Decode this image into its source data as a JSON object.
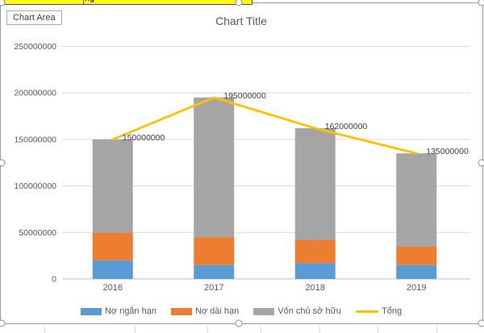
{
  "chart_area_tooltip": {
    "label": "Chart Area"
  },
  "sheet": {
    "top_row_text_fragment": "ng",
    "highlight_color": "#FFFF00",
    "highlight_border_color": "#7030A0"
  },
  "chart_data": {
    "type": "bar",
    "subtype": "stacked-column-with-line-overlay",
    "title": "Chart Title",
    "categories": [
      "2016",
      "2017",
      "2018",
      "2019"
    ],
    "series": [
      {
        "name": "Nợ ngắn hạn",
        "type": "bar",
        "color": "#5B9BD5",
        "values": [
          20000000,
          15000000,
          17000000,
          15000000
        ]
      },
      {
        "name": "Nợ dài hạn",
        "type": "bar",
        "color": "#ED7D31",
        "values": [
          30000000,
          30000000,
          25000000,
          20000000
        ]
      },
      {
        "name": "Vốn chủ sở hữu",
        "type": "bar",
        "color": "#A5A5A5",
        "values": [
          100000000,
          150000000,
          120000000,
          100000000
        ]
      },
      {
        "name": "Tổng",
        "type": "line",
        "color": "#FFC000",
        "values": [
          150000000,
          195000000,
          162000000,
          135000000
        ],
        "data_labels": [
          "150000000",
          "195000000",
          "162000000",
          "135000000"
        ]
      }
    ],
    "y_axis": {
      "min": 0,
      "max": 250000000,
      "tick_interval": 50000000,
      "tick_labels": [
        "0",
        "50000000",
        "100000000",
        "150000000",
        "200000000",
        "250000000"
      ]
    },
    "x_axis": {
      "labels": [
        "2016",
        "2017",
        "2018",
        "2019"
      ]
    },
    "legend_position": "bottom",
    "gridlines": true,
    "stacked": true,
    "axis_text_color": "#595959",
    "data_label_color": "#404040",
    "gridline_color": "#D9D9D9",
    "axis_line_color": "#BFBFBF"
  }
}
